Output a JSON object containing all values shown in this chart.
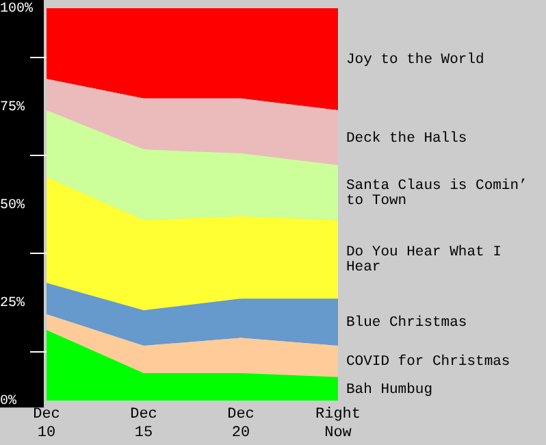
{
  "chart_data": {
    "type": "area",
    "stacked": true,
    "categories": [
      "Dec 10",
      "Dec 15",
      "Dec 20",
      "Right Now"
    ],
    "ylim": [
      0,
      100
    ],
    "yticks": [
      {
        "value": 0,
        "label": "0%"
      },
      {
        "value": 12.5,
        "label": null
      },
      {
        "value": 25,
        "label": "25%"
      },
      {
        "value": 37.5,
        "label": null
      },
      {
        "value": 50,
        "label": "50%"
      },
      {
        "value": 62.5,
        "label": null
      },
      {
        "value": 75,
        "label": "75%"
      },
      {
        "value": 87.5,
        "label": null
      },
      {
        "value": 100,
        "label": "100%"
      }
    ],
    "grid": "x",
    "series": [
      {
        "name": "Bah Humbug",
        "color": "#00ff00",
        "values": [
          18,
          7,
          7,
          6
        ]
      },
      {
        "name": "COVID for Christmas",
        "color": "#ffcc99",
        "values": [
          4,
          7,
          9,
          8
        ]
      },
      {
        "name": "Blue Christmas",
        "color": "#6699cc",
        "values": [
          8,
          9,
          10,
          12
        ]
      },
      {
        "name": "Do You Hear What I Hear",
        "color": "#ffff33",
        "values": [
          27,
          23,
          21,
          20
        ]
      },
      {
        "name": "Santa Claus is Comin’ to Town",
        "color": "#ccff99",
        "values": [
          17,
          18,
          16,
          14
        ]
      },
      {
        "name": "Deck the Halls",
        "color": "#ebbbbb",
        "values": [
          8,
          13,
          14,
          14
        ]
      },
      {
        "name": "Joy to the World",
        "color": "#ff0000",
        "values": [
          18,
          23,
          23,
          26
        ]
      }
    ]
  }
}
